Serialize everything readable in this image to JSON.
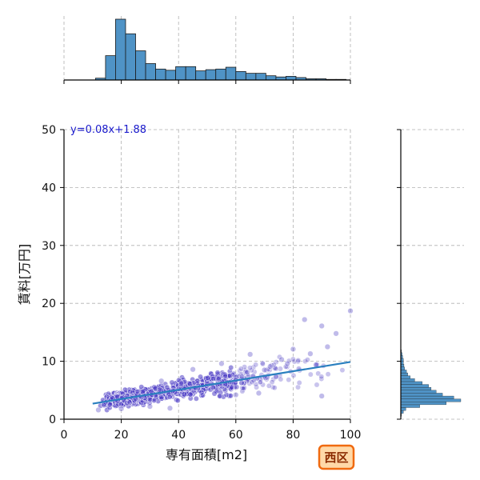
{
  "chart_data": {
    "type": "scatter",
    "xlabel": "専有面積[m2]",
    "ylabel": "賃料[万円]",
    "xlim": [
      0,
      100
    ],
    "ylim": [
      0,
      50
    ],
    "xticks": [
      0,
      20,
      40,
      60,
      80,
      100
    ],
    "yticks": [
      0,
      10,
      20,
      30,
      40,
      50
    ],
    "grid": true,
    "annotation": "y=0.08x+1.88",
    "badge": "西区",
    "regression": {
      "slope": 0.08,
      "intercept": 1.88,
      "x_range": [
        10,
        100
      ]
    },
    "point_color": "#4b3bc4",
    "line_color": "#2a7fbf",
    "hist_color": "#4f93c6",
    "x_histogram": {
      "bin_edges": [
        11,
        14.5,
        18,
        21.5,
        25,
        28.5,
        32,
        35.5,
        39,
        42.5,
        46,
        49.5,
        53,
        56.5,
        60,
        63.5,
        67,
        70.5,
        74,
        77.5,
        81,
        84.5,
        88,
        91.5,
        95,
        98.5
      ],
      "counts": [
        3,
        40,
        100,
        76,
        48,
        27,
        18,
        16,
        22,
        22,
        15,
        17,
        18,
        21,
        14,
        11,
        11,
        7,
        5,
        6,
        4,
        2,
        2,
        1,
        1
      ]
    },
    "y_histogram": {
      "bin_edges": [
        0.5,
        1,
        1.5,
        2,
        2.5,
        3,
        3.5,
        4,
        4.5,
        5,
        5.5,
        6,
        6.5,
        7,
        7.5,
        8,
        8.5,
        9,
        9.5,
        10,
        10.5,
        11,
        11.5,
        12
      ],
      "counts": [
        1,
        4,
        8,
        30,
        72,
        95,
        84,
        66,
        56,
        48,
        44,
        34,
        22,
        15,
        11,
        9,
        6,
        5,
        4,
        4,
        3,
        2,
        1
      ]
    },
    "points": [
      [
        12,
        1.6
      ],
      [
        14,
        2.4
      ],
      [
        16,
        2.5
      ],
      [
        18,
        2.3
      ],
      [
        19,
        2.6
      ],
      [
        20,
        2.6
      ],
      [
        21,
        3.2
      ],
      [
        22,
        2.8
      ],
      [
        23,
        2.9
      ],
      [
        17,
        3.6
      ],
      [
        25,
        3.5
      ],
      [
        27,
        3.8
      ],
      [
        30,
        3.4
      ],
      [
        32,
        4.1
      ],
      [
        34,
        3.8
      ],
      [
        36,
        5.5
      ],
      [
        37,
        1.9
      ],
      [
        38,
        4.9
      ],
      [
        40,
        5.2
      ],
      [
        42,
        4.3
      ],
      [
        44,
        6.1
      ],
      [
        46,
        5.4
      ],
      [
        48,
        4.6
      ],
      [
        50,
        6.1
      ],
      [
        52,
        5.5
      ],
      [
        54,
        6.9
      ],
      [
        56,
        5.2
      ],
      [
        58,
        7.5
      ],
      [
        60,
        6.8
      ],
      [
        62,
        6.3
      ],
      [
        64,
        8.1
      ],
      [
        66,
        7.4
      ],
      [
        68,
        4.5
      ],
      [
        70,
        8.5
      ],
      [
        72,
        9.1
      ],
      [
        74,
        7.3
      ],
      [
        76,
        10.3
      ],
      [
        78,
        9.6
      ],
      [
        80,
        12.1
      ],
      [
        82,
        8.7
      ],
      [
        84,
        17.2
      ],
      [
        86,
        11.3
      ],
      [
        88,
        9.4
      ],
      [
        90,
        16.1
      ],
      [
        92,
        12.5
      ],
      [
        95,
        14.8
      ],
      [
        100,
        18.7
      ],
      [
        45,
        8.6
      ],
      [
        55,
        9.6
      ],
      [
        65,
        11.2
      ],
      [
        20,
        1.8
      ],
      [
        30,
        2.2
      ],
      [
        24,
        4.6
      ],
      [
        34,
        6.6
      ],
      [
        60,
        4.2
      ],
      [
        90,
        4.0
      ]
    ]
  }
}
